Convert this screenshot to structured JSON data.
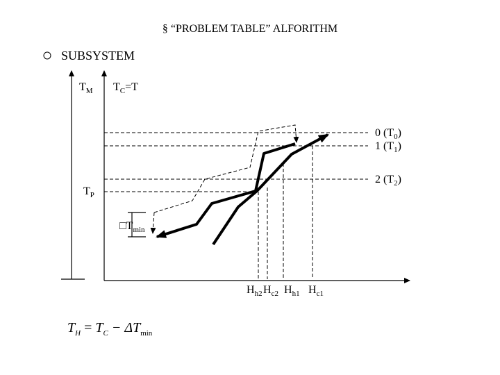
{
  "title": "§ “PROBLEM TABLE” ALFORITHM",
  "bullet": "SUBSYSTEM",
  "labels": {
    "tm": {
      "main": "T",
      "sub": "M"
    },
    "tc": {
      "main": "T",
      "sub": "C",
      "rest": "=T"
    },
    "t0": {
      "main": "0 (T",
      "sub": "0",
      "rest": ")"
    },
    "t1": {
      "main": "1 (T",
      "sub": "1",
      "rest": ")"
    },
    "t2": {
      "main": "2 (T",
      "sub": "2",
      "rest": ")"
    },
    "tp": {
      "main": "T",
      "sub": "P"
    },
    "dtmin": {
      "main": "□T",
      "sub": "min"
    },
    "hh2": {
      "main": "H",
      "sub": "h2"
    },
    "hc2": {
      "main": "H",
      "sub": "c2"
    },
    "hh1": {
      "main": "H",
      "sub": "h1"
    },
    "hc1": {
      "main": "H",
      "sub": "c1"
    }
  },
  "formula": {
    "lhs": "T",
    "lhs_sub": "H",
    "eq": " = ",
    "rhs": "T",
    "rhs_sub": "C",
    "minus": " − ΔT",
    "minus_sub": "min"
  }
}
